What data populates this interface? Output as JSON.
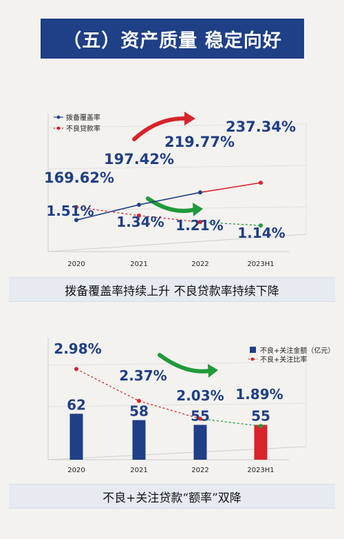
{
  "header": {
    "title": "（五）资产质量 稳定向好"
  },
  "captions": {
    "top": "拨备覆盖率持续上升  不良贷款率持续下降",
    "bottom": "不良+关注贷款“额率”双降"
  },
  "colors": {
    "navy": "#1f3f86",
    "red": "#d8232a",
    "green": "#1f9a3a",
    "grid": "#c9c9c9"
  },
  "chart_data": [
    {
      "type": "line",
      "categories": [
        "2020",
        "2021",
        "2022",
        "2023H1"
      ],
      "series": [
        {
          "name": "拨备覆盖率",
          "values": [
            169.62,
            197.42,
            219.77,
            237.34
          ],
          "labels": [
            "169.62%",
            "197.42%",
            "219.77%",
            "237.34%"
          ]
        },
        {
          "name": "不良贷款率",
          "values": [
            1.51,
            1.34,
            1.21,
            1.14
          ],
          "labels": [
            "1.51%",
            "1.34%",
            "1.21%",
            "1.14%"
          ]
        }
      ],
      "legend_position": "top-left"
    },
    {
      "type": "bar",
      "categories": [
        "2020",
        "2021",
        "2022",
        "2023H1"
      ],
      "series": [
        {
          "name": "不良+关注金额（亿元）",
          "values": [
            62,
            58,
            55,
            55
          ],
          "labels": [
            "62",
            "58",
            "55",
            "55"
          ]
        },
        {
          "name": "不良+关注比率",
          "values": [
            2.98,
            2.37,
            2.03,
            1.89
          ],
          "labels": [
            "2.98%",
            "2.37%",
            "2.03%",
            "1.89%"
          ]
        }
      ],
      "legend_position": "top-right"
    }
  ]
}
